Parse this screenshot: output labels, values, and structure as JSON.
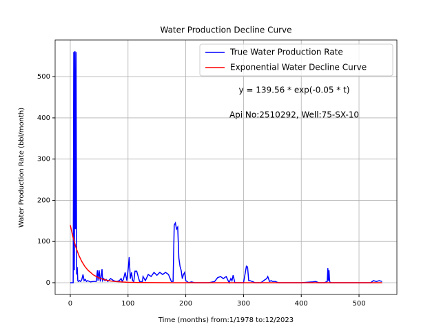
{
  "chart_data": {
    "type": "line",
    "title": "Water Production Decline Curve",
    "xlabel": "Time (months) from:1/1978 to:12/2023",
    "ylabel": "Water Production Rate (bbl/month)",
    "annotations": [
      "y = 139.56 * exp(-0.05 * t)",
      "Api No:2510292, Well:75-SX-10"
    ],
    "xlim": [
      -26.25,
      565.6
    ],
    "ylim": [
      -28.5,
      589
    ],
    "xticks": [
      0,
      100,
      200,
      300,
      400,
      500
    ],
    "yticks": [
      0,
      100,
      200,
      300,
      400,
      500
    ],
    "grid": true,
    "legend": "upper right",
    "series": [
      {
        "name": "True Water Production Rate",
        "color": "#0000ff",
        "x": [
          0,
          5,
          6,
          7,
          8,
          9,
          10,
          11,
          12,
          13,
          14,
          16,
          18,
          20,
          22,
          24,
          26,
          28,
          30,
          35,
          40,
          45,
          47,
          48,
          50,
          52,
          53,
          55,
          56,
          58,
          60,
          62,
          65,
          70,
          75,
          80,
          85,
          88,
          90,
          92,
          95,
          98,
          100,
          102,
          104,
          106,
          108,
          110,
          112,
          115,
          120,
          125,
          126,
          130,
          135,
          140,
          145,
          150,
          155,
          160,
          165,
          170,
          175,
          178,
          180,
          182,
          184,
          186,
          188,
          190,
          192,
          194,
          196,
          198,
          200,
          205,
          210,
          215,
          220,
          230,
          240,
          250,
          255,
          260,
          265,
          270,
          275,
          278,
          280,
          282,
          285,
          290,
          300,
          305,
          307,
          309,
          311,
          315,
          320,
          330,
          340,
          342,
          345,
          348,
          350,
          355,
          360,
          365,
          370,
          400,
          420,
          425,
          430,
          440,
          445,
          446,
          447,
          448,
          449,
          450,
          460,
          500,
          520,
          525,
          530,
          535,
          540
        ],
        "values": [
          0,
          0,
          560,
          30,
          562,
          130,
          560,
          20,
          38,
          5,
          3,
          5,
          3,
          8,
          20,
          5,
          8,
          3,
          5,
          2,
          3,
          3,
          30,
          5,
          30,
          3,
          10,
          33,
          5,
          10,
          5,
          8,
          3,
          10,
          5,
          3,
          5,
          10,
          3,
          8,
          25,
          5,
          30,
          62,
          10,
          25,
          5,
          3,
          28,
          28,
          3,
          3,
          15,
          5,
          20,
          15,
          25,
          18,
          25,
          20,
          25,
          20,
          3,
          3,
          140,
          145,
          130,
          135,
          60,
          40,
          30,
          10,
          20,
          25,
          5,
          0,
          2,
          0,
          0,
          0,
          0,
          3,
          12,
          15,
          10,
          15,
          0,
          10,
          5,
          18,
          0,
          0,
          0,
          40,
          38,
          5,
          5,
          3,
          0,
          0,
          10,
          15,
          3,
          5,
          3,
          3,
          0,
          0,
          0,
          0,
          2,
          3,
          0,
          0,
          3,
          35,
          5,
          30,
          5,
          0,
          0,
          0,
          0,
          5,
          3,
          5,
          3
        ]
      },
      {
        "name": "Exponential Water Decline Curve",
        "color": "#ff0000",
        "x": [
          0,
          5,
          10,
          15,
          20,
          25,
          30,
          40,
          50,
          60,
          70,
          80,
          100,
          120,
          150,
          200,
          300,
          400,
          540
        ],
        "values": [
          139.56,
          108.69,
          84.65,
          65.92,
          51.34,
          39.99,
          31.14,
          18.89,
          11.46,
          6.95,
          4.22,
          2.56,
          0.94,
          0.35,
          0.077,
          0.006,
          0,
          0,
          0
        ]
      }
    ]
  }
}
